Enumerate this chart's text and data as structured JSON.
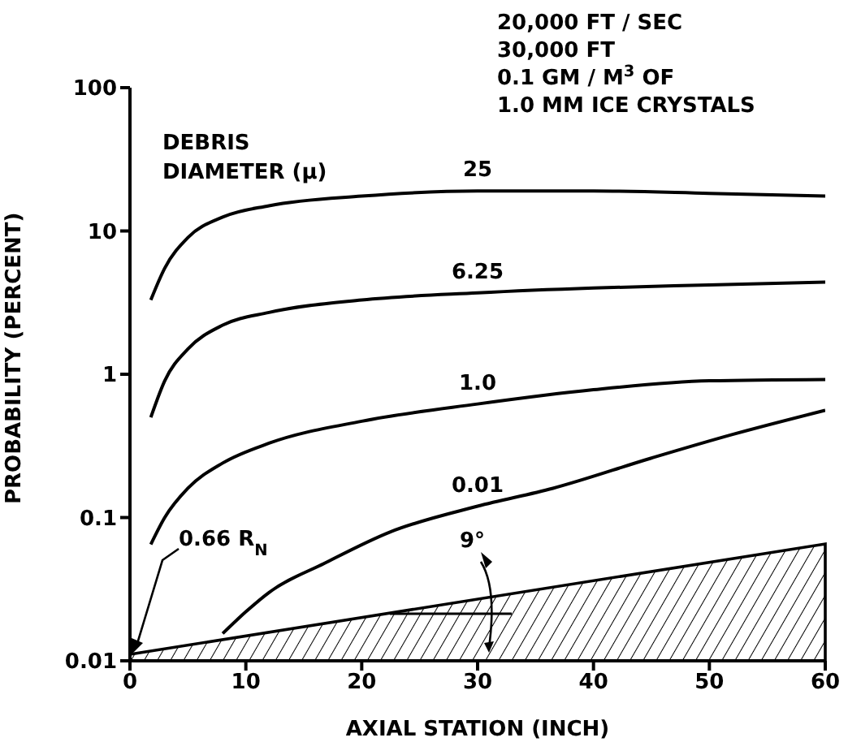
{
  "chart_data": {
    "type": "line",
    "xlabel": "AXIAL STATION (INCH)",
    "ylabel": "PROBABILITY (PERCENT)",
    "legend_title": "DEBRIS DIAMETER (μ)",
    "annotations": [
      "20,000 FT / SEC",
      "30,000 FT",
      "0.1 GM / M$^{3}$ OF",
      "1.0 MM ICE CRYSTALS",
      "0.66 R$_{N}$",
      "9°"
    ],
    "series": [
      {
        "name": "25",
        "color": "#000000",
        "x": [
          1.8,
          3,
          5,
          8,
          12,
          20,
          30,
          40,
          50,
          60
        ],
        "values": [
          3.3,
          5.5,
          9,
          12.5,
          15,
          17.5,
          19,
          19,
          18.3,
          17.5
        ]
      },
      {
        "name": "6.25",
        "color": "#000000",
        "x": [
          1.8,
          3,
          5,
          8,
          12,
          20,
          30,
          40,
          50,
          60
        ],
        "values": [
          0.5,
          0.9,
          1.5,
          2.2,
          2.7,
          3.3,
          3.7,
          4.0,
          4.2,
          4.4
        ]
      },
      {
        "name": "1.0",
        "color": "#000000",
        "x": [
          1.8,
          3,
          5,
          8,
          12,
          20,
          30,
          40,
          50,
          60
        ],
        "values": [
          0.065,
          0.1,
          0.16,
          0.24,
          0.33,
          0.47,
          0.62,
          0.78,
          0.9,
          0.92
        ]
      },
      {
        "name": "0.01",
        "color": "#000000",
        "x": [
          8,
          10,
          12,
          16.8,
          22.4,
          30,
          36.5,
          45,
          52,
          60
        ],
        "values": [
          0.0155,
          0.022,
          0.03,
          0.048,
          0.079,
          0.12,
          0.16,
          0.26,
          0.38,
          0.56
        ]
      }
    ],
    "xlim": [
      0,
      60
    ],
    "xticks": [
      0,
      10,
      20,
      30,
      40,
      50,
      60
    ],
    "ylim": [
      0.01,
      100
    ],
    "yticks": [
      0.01,
      0.1,
      1,
      10,
      100
    ],
    "log": "y",
    "grid": false,
    "marker": "none",
    "line_style": "solid"
  }
}
